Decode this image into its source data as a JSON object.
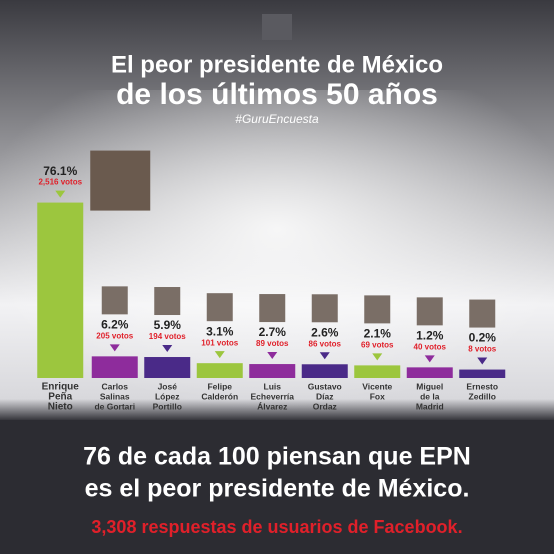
{
  "chart_data": {
    "type": "bar",
    "title": [
      "El peor presidente de México",
      "de los últimos 50 años"
    ],
    "subtitle": "#GuruEncuesta",
    "categories": [
      [
        "Enrique",
        "Peña",
        "Nieto"
      ],
      [
        "Carlos",
        "Salinas",
        "de Gortari"
      ],
      [
        "José",
        "López",
        "Portillo"
      ],
      [
        "Felipe",
        "Calderón"
      ],
      [
        "Luis",
        "Echeverría",
        "Álvarez"
      ],
      [
        "Gustavo",
        "Díaz",
        "Ordaz"
      ],
      [
        "Vicente",
        "Fox"
      ],
      [
        "Miguel",
        "de la",
        "Madrid"
      ],
      [
        "Ernesto",
        "Zedillo"
      ]
    ],
    "values": [
      76.1,
      6.2,
      5.9,
      3.1,
      2.7,
      2.6,
      2.1,
      1.2,
      0.2
    ],
    "value_labels": [
      "76.1%",
      "6.2%",
      "5.9%",
      "3.1%",
      "2.7%",
      "2.6%",
      "2.1%",
      "1.2%",
      "0.2%"
    ],
    "vote_labels": [
      "2,516 votos",
      "205 votos",
      "194 votos",
      "101 votos",
      "89 votos",
      "86 votos",
      "69 votos",
      "40 votos",
      "8 votos"
    ],
    "colors": [
      "#9cc63e",
      "#8e2c9c",
      "#4a2a88",
      "#9cc63e",
      "#8e2c9c",
      "#4a2a88",
      "#9cc63e",
      "#8e2c9c",
      "#4a2a88"
    ],
    "footer": [
      "76 de cada 100 piensan que EPN",
      "es el peor presidente de México."
    ],
    "source": "3,308 respuestas de usuarios de Facebook."
  }
}
